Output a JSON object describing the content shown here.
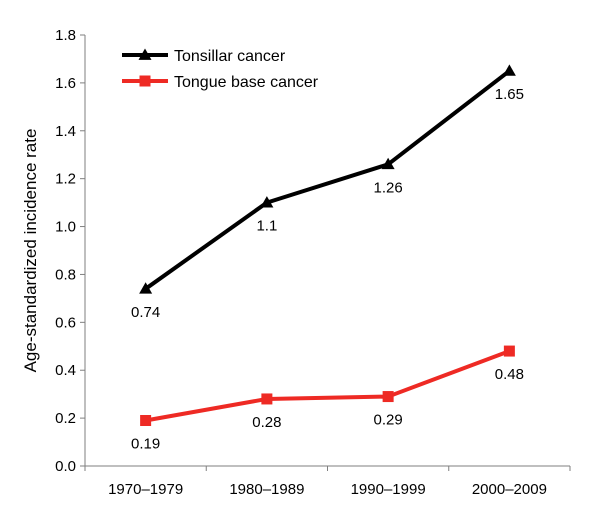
{
  "chart_data": {
    "type": "line",
    "title": "",
    "xlabel": "",
    "ylabel": "Age-standardized incidence rate",
    "categories": [
      "1970–1979",
      "1980–1989",
      "1990–1999",
      "2000–2009"
    ],
    "ylim": [
      0,
      1.8
    ],
    "yticks": [
      "0.0",
      "0.2",
      "0.4",
      "0.6",
      "0.8",
      "1.0",
      "1.2",
      "1.4",
      "1.6",
      "1.8"
    ],
    "grid": false,
    "legend_position": "top-left",
    "series": [
      {
        "name": "Tonsillar cancer",
        "values": [
          0.74,
          1.1,
          1.26,
          1.65
        ],
        "labels": [
          "0.74",
          "1.1",
          "1.26",
          "1.65"
        ],
        "color": "#000000",
        "marker": "triangle"
      },
      {
        "name": "Tongue base cancer",
        "values": [
          0.19,
          0.28,
          0.29,
          0.48
        ],
        "labels": [
          "0.19",
          "0.28",
          "0.29",
          "0.48"
        ],
        "color": "#ee2a24",
        "marker": "square"
      }
    ]
  }
}
